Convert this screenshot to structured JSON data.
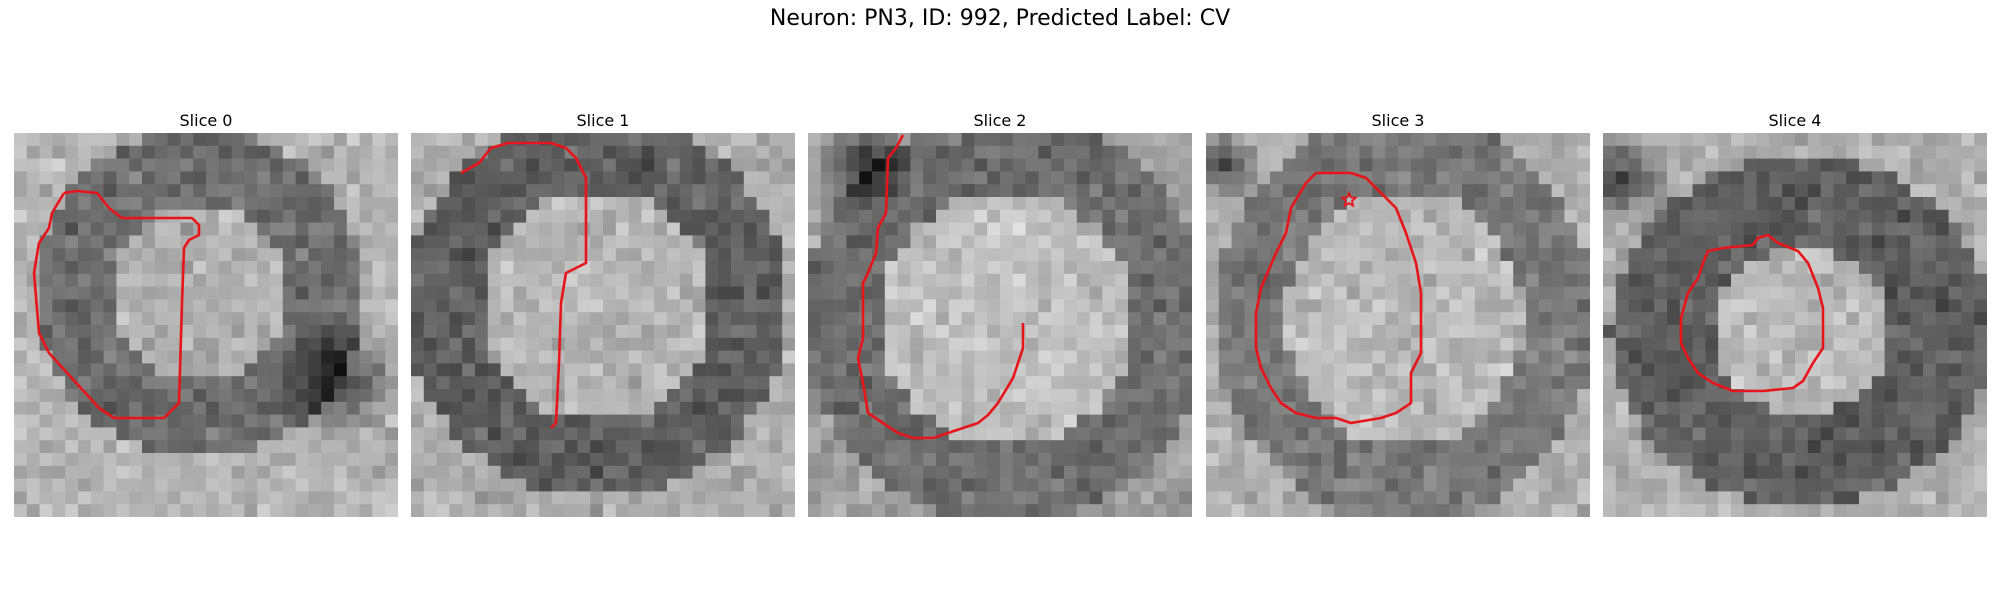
{
  "figure": {
    "title": "Neuron: PN3, ID: 992, Predicted Label: CV",
    "contour_color": "#e8141a"
  },
  "panels": [
    {
      "title": "Slice 0"
    },
    {
      "title": "Slice 1"
    },
    {
      "title": "Slice 2"
    },
    {
      "title": "Slice 3"
    },
    {
      "title": "Slice 4"
    }
  ]
}
